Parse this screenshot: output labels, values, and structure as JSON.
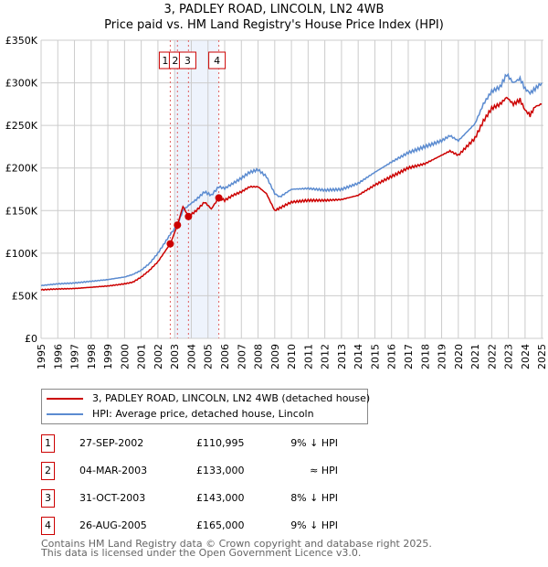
{
  "title": "3, PADLEY ROAD, LINCOLN, LN2 4WB",
  "subtitle": "Price paid vs. HM Land Registry's House Price Index (HPI)",
  "chart_data": {
    "type": "line",
    "xlim": [
      1995,
      2025.1
    ],
    "ylim": [
      0,
      350000
    ],
    "yticks": [
      {
        "v": 0,
        "l": "£0"
      },
      {
        "v": 50000,
        "l": "£50K"
      },
      {
        "v": 100000,
        "l": "£100K"
      },
      {
        "v": 150000,
        "l": "£150K"
      },
      {
        "v": 200000,
        "l": "£200K"
      },
      {
        "v": 250000,
        "l": "£250K"
      },
      {
        "v": 300000,
        "l": "£300K"
      },
      {
        "v": 350000,
        "l": "£350K"
      }
    ],
    "xticks": [
      "1995",
      "1996",
      "1997",
      "1998",
      "1999",
      "2000",
      "2001",
      "2002",
      "2003",
      "2004",
      "2005",
      "2006",
      "2007",
      "2008",
      "2009",
      "2010",
      "2011",
      "2012",
      "2013",
      "2014",
      "2015",
      "2016",
      "2017",
      "2018",
      "2019",
      "2020",
      "2021",
      "2022",
      "2023",
      "2024",
      "2025"
    ],
    "grid": true,
    "shaded_ranges": [
      [
        2003.0,
        2004.0
      ],
      [
        2004.0,
        2005.65
      ]
    ],
    "series": [
      {
        "name": "3, PADLEY ROAD, LINCOLN, LN2 4WB (detached house)",
        "color": "#cc0000",
        "x": [
          1995,
          1996,
          1997,
          1998,
          1999,
          2000,
          2000.5,
          2001,
          2001.5,
          2002,
          2002.74,
          2003.17,
          2003.5,
          2003.83,
          2004.3,
          2004.8,
          2005.2,
          2005.65,
          2006,
          2006.5,
          2007,
          2007.5,
          2008,
          2008.5,
          2009,
          2009.3,
          2010,
          2011,
          2012,
          2013,
          2014,
          2015,
          2016,
          2017,
          2018,
          2019,
          2019.5,
          2020,
          2020.5,
          2021,
          2021.5,
          2022,
          2022.5,
          2022.9,
          2023.3,
          2023.7,
          2024,
          2024.3,
          2024.6,
          2025
        ],
        "y": [
          57000,
          58000,
          58500,
          60000,
          61500,
          64000,
          66000,
          72000,
          80000,
          90000,
          110995,
          133000,
          155000,
          143000,
          150000,
          160000,
          152000,
          165000,
          162000,
          168000,
          172000,
          178000,
          178000,
          170000,
          150000,
          153000,
          160000,
          162000,
          162000,
          163000,
          168000,
          180000,
          190000,
          200000,
          205000,
          215000,
          220000,
          215000,
          225000,
          235000,
          255000,
          270000,
          275000,
          283000,
          275000,
          280000,
          268000,
          262000,
          272000,
          275000
        ]
      },
      {
        "name": "HPI: Average price, detached house, Lincoln",
        "color": "#5b8bd0",
        "x": [
          1995,
          1996,
          1997,
          1998,
          1999,
          2000,
          2000.5,
          2001,
          2001.5,
          2002,
          2002.74,
          2003.17,
          2003.5,
          2003.83,
          2004.3,
          2004.8,
          2005.2,
          2005.65,
          2006,
          2006.5,
          2007,
          2007.5,
          2008,
          2008.5,
          2009,
          2009.3,
          2010,
          2011,
          2012,
          2013,
          2014,
          2015,
          2016,
          2017,
          2018,
          2019,
          2019.5,
          2020,
          2020.5,
          2021,
          2021.5,
          2022,
          2022.5,
          2022.9,
          2023.3,
          2023.7,
          2024,
          2024.3,
          2024.6,
          2025
        ],
        "y": [
          62000,
          64000,
          65000,
          67000,
          69000,
          72000,
          75000,
          80000,
          88000,
          100000,
          122000,
          133000,
          150000,
          156000,
          163000,
          172000,
          168000,
          178000,
          176000,
          182000,
          188000,
          195000,
          198000,
          190000,
          170000,
          166000,
          175000,
          176000,
          174000,
          175000,
          182000,
          195000,
          207000,
          218000,
          225000,
          232000,
          238000,
          232000,
          242000,
          252000,
          275000,
          290000,
          295000,
          310000,
          300000,
          305000,
          293000,
          288000,
          293000,
          300000
        ]
      }
    ],
    "sales": [
      {
        "n": "1",
        "x": 2002.74,
        "y": 110995,
        "date": "27-SEP-2002",
        "price": "£110,995",
        "hpi": "9% ↓ HPI"
      },
      {
        "n": "2",
        "x": 2003.17,
        "y": 133000,
        "date": "04-MAR-2003",
        "price": "£133,000",
        "hpi": "≈ HPI"
      },
      {
        "n": "3",
        "x": 2003.83,
        "y": 143000,
        "date": "31-OCT-2003",
        "price": "£143,000",
        "hpi": "8% ↓ HPI"
      },
      {
        "n": "4",
        "x": 2005.65,
        "y": 165000,
        "date": "26-AUG-2005",
        "price": "£165,000",
        "hpi": "9% ↓ HPI"
      }
    ]
  },
  "legend": {
    "property": "3, PADLEY ROAD, LINCOLN, LN2 4WB (detached house)",
    "hpi": "HPI: Average price, detached house, Lincoln"
  },
  "footer": {
    "line1": "Contains HM Land Registry data © Crown copyright and database right 2025.",
    "line2": "This data is licensed under the Open Government Licence v3.0."
  }
}
